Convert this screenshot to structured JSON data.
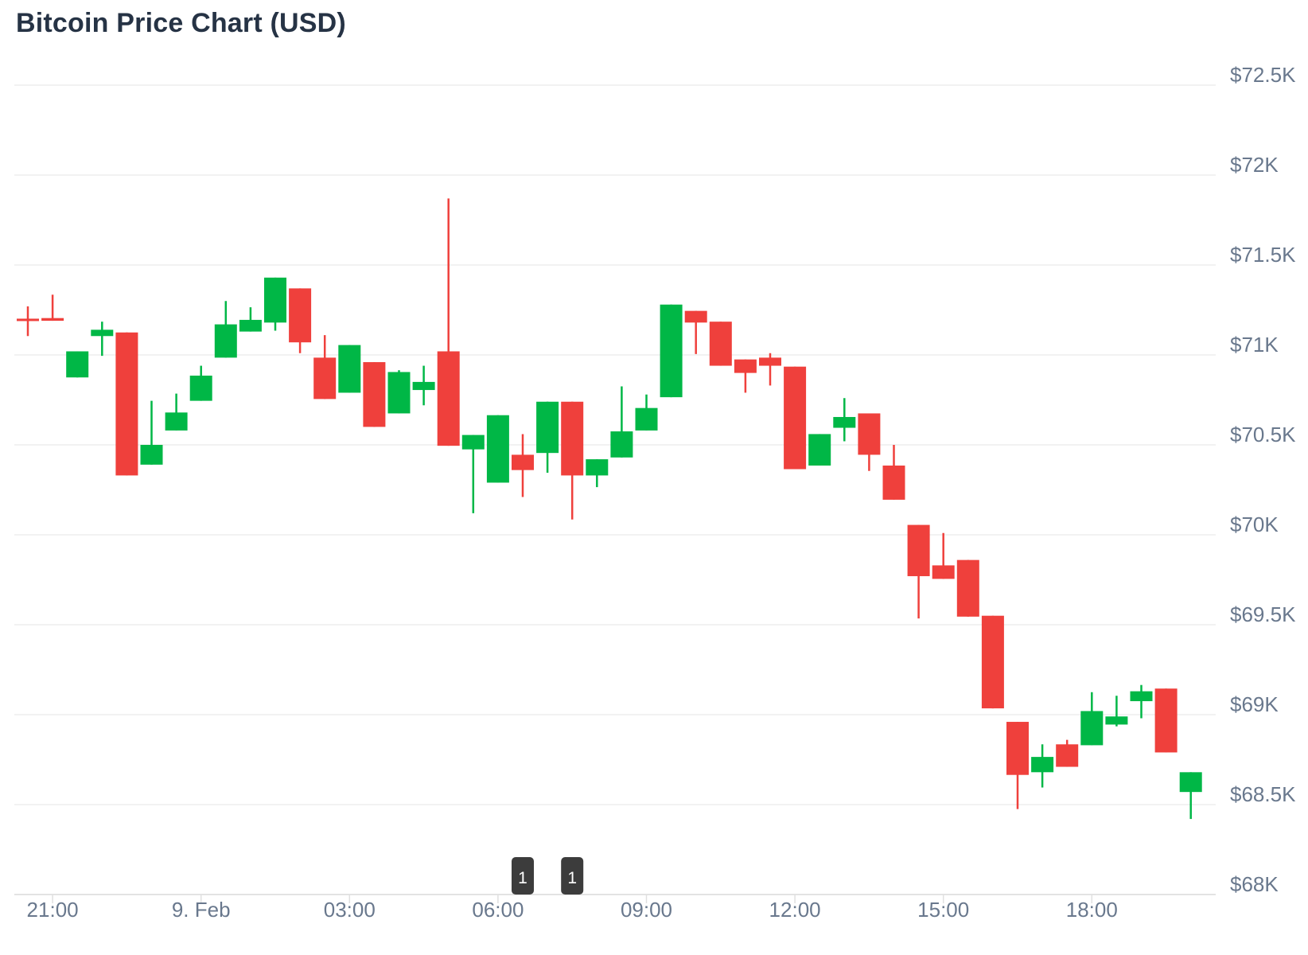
{
  "colors": {
    "up": "#00B746",
    "down": "#EF403C",
    "grid": "#f2f2f2",
    "axis_line": "#e3e3e3",
    "tick": "#e0e0e0",
    "axis_label": "#69788D",
    "title": "#263345",
    "badge_bg": "#3C3C3C",
    "badge_text": "#ffffff",
    "background": "#ffffff"
  },
  "chart_data": {
    "type": "candlestick",
    "title": "Bitcoin Price Chart (USD)",
    "ylim": [
      68000,
      72500
    ],
    "grid": true,
    "legend": "none",
    "y_axis_position": "right",
    "y_ticks": [
      {
        "label": "$72.5K",
        "price": 72500
      },
      {
        "label": "$72K",
        "price": 72000
      },
      {
        "label": "$71.5K",
        "price": 71500
      },
      {
        "label": "$71K",
        "price": 71000
      },
      {
        "label": "$70.5K",
        "price": 70500
      },
      {
        "label": "$70K",
        "price": 70000
      },
      {
        "label": "$69.5K",
        "price": 69500
      },
      {
        "label": "$69K",
        "price": 69000
      },
      {
        "label": "$68.5K",
        "price": 68500
      },
      {
        "label": "$68K",
        "price": 68000
      }
    ],
    "x_ticks": [
      {
        "label": "21:00",
        "candle_index": 1
      },
      {
        "label": "9. Feb",
        "candle_index": 7
      },
      {
        "label": "03:00",
        "candle_index": 13
      },
      {
        "label": "06:00",
        "candle_index": 19
      },
      {
        "label": "09:00",
        "candle_index": 25
      },
      {
        "label": "12:00",
        "candle_index": 31
      },
      {
        "label": "15:00",
        "candle_index": 37
      },
      {
        "label": "18:00",
        "candle_index": 43
      }
    ],
    "annotations": [
      {
        "label": "1",
        "candle_index": 20
      },
      {
        "label": "1",
        "candle_index": 22
      }
    ],
    "candle_columns": [
      "open",
      "high",
      "low",
      "close"
    ],
    "candles": [
      [
        71200,
        71270,
        71105,
        71190
      ],
      [
        71205,
        71335,
        71190,
        71190
      ],
      [
        70875,
        71020,
        70875,
        71020
      ],
      [
        71105,
        71185,
        70995,
        71140
      ],
      [
        71125,
        71125,
        70330,
        70330
      ],
      [
        70390,
        70745,
        70390,
        70500
      ],
      [
        70580,
        70785,
        70580,
        70680
      ],
      [
        70745,
        70940,
        70745,
        70885
      ],
      [
        70985,
        71300,
        70985,
        71170
      ],
      [
        71130,
        71265,
        71130,
        71195
      ],
      [
        71180,
        71430,
        71135,
        71430
      ],
      [
        71370,
        71370,
        71010,
        71070
      ],
      [
        70985,
        71110,
        70755,
        70755
      ],
      [
        70790,
        71055,
        70790,
        71055
      ],
      [
        70960,
        70960,
        70600,
        70600
      ],
      [
        70675,
        70915,
        70675,
        70905
      ],
      [
        70805,
        70940,
        70720,
        70850
      ],
      [
        71020,
        71870,
        70495,
        70495
      ],
      [
        70475,
        70555,
        70120,
        70555
      ],
      [
        70290,
        70665,
        70290,
        70665
      ],
      [
        70445,
        70560,
        70210,
        70360
      ],
      [
        70455,
        70740,
        70345,
        70740
      ],
      [
        70740,
        70740,
        70085,
        70330
      ],
      [
        70330,
        70420,
        70265,
        70420
      ],
      [
        70430,
        70825,
        70430,
        70575
      ],
      [
        70580,
        70780,
        70580,
        70705
      ],
      [
        70765,
        71280,
        70765,
        71280
      ],
      [
        71245,
        71245,
        71005,
        71180
      ],
      [
        71185,
        71185,
        70940,
        70940
      ],
      [
        70975,
        70975,
        70790,
        70900
      ],
      [
        70985,
        71010,
        70830,
        70940
      ],
      [
        70935,
        70935,
        70365,
        70365
      ],
      [
        70385,
        70560,
        70385,
        70560
      ],
      [
        70595,
        70760,
        70520,
        70655
      ],
      [
        70675,
        70675,
        70355,
        70445
      ],
      [
        70385,
        70500,
        70195,
        70195
      ],
      [
        70055,
        70055,
        69535,
        69770
      ],
      [
        69830,
        70010,
        69755,
        69755
      ],
      [
        69860,
        69860,
        69545,
        69545
      ],
      [
        69550,
        69550,
        69035,
        69035
      ],
      [
        68960,
        68960,
        68475,
        68665
      ],
      [
        68680,
        68835,
        68595,
        68765
      ],
      [
        68835,
        68860,
        68710,
        68710
      ],
      [
        68830,
        69125,
        68830,
        69020
      ],
      [
        68945,
        69105,
        68935,
        68990
      ],
      [
        69075,
        69165,
        68980,
        69130
      ],
      [
        69145,
        69145,
        68790,
        68790
      ],
      [
        68570,
        68680,
        68420,
        68680
      ]
    ]
  }
}
